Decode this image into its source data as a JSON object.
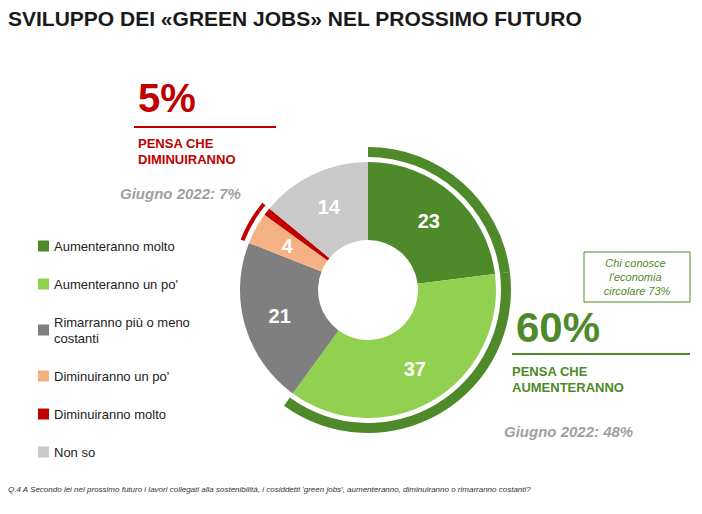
{
  "chart_data": {
    "type": "donut",
    "title": "SVILUPPO DEI «GREEN JOBS» NEL PROSSIMO FUTURO",
    "categories": [
      "Aumenteranno molto",
      "Aumenteranno un po'",
      "Rimarranno più o meno costanti",
      "Diminuiranno un po'",
      "Diminuiranno molto",
      "Non so"
    ],
    "values": [
      23,
      37,
      21,
      4,
      1,
      14
    ],
    "colors": [
      "#4e8a2a",
      "#92d050",
      "#7f7f7f",
      "#f4b183",
      "#c00000",
      "#c9c9c9"
    ],
    "data_labels": true,
    "legend": "left",
    "annotations": [
      {
        "text": "5%",
        "label": "PENSA CHE DIMINUIRANNO",
        "previous": "Giugno 2022: 7%",
        "categories": [
          "Diminuiranno un po'",
          "Diminuiranno molto"
        ],
        "color": "#c00000"
      },
      {
        "text": "60%",
        "label": "PENSA CHE AUMENTERANNO",
        "previous": "Giugno 2022: 48%",
        "categories": [
          "Aumenteranno molto",
          "Aumenteranno un po'"
        ],
        "color": "#4e8a2a",
        "note": "Chi conosce l'economia circolare 73%"
      }
    ],
    "footnote": "Q.4 A Secondo lei nel prossimo futuro i lavori collegati alla sostenibilità, i cosiddetti 'green jobs', aumenteranno, diminuiranno o rimarranno costanti?"
  }
}
